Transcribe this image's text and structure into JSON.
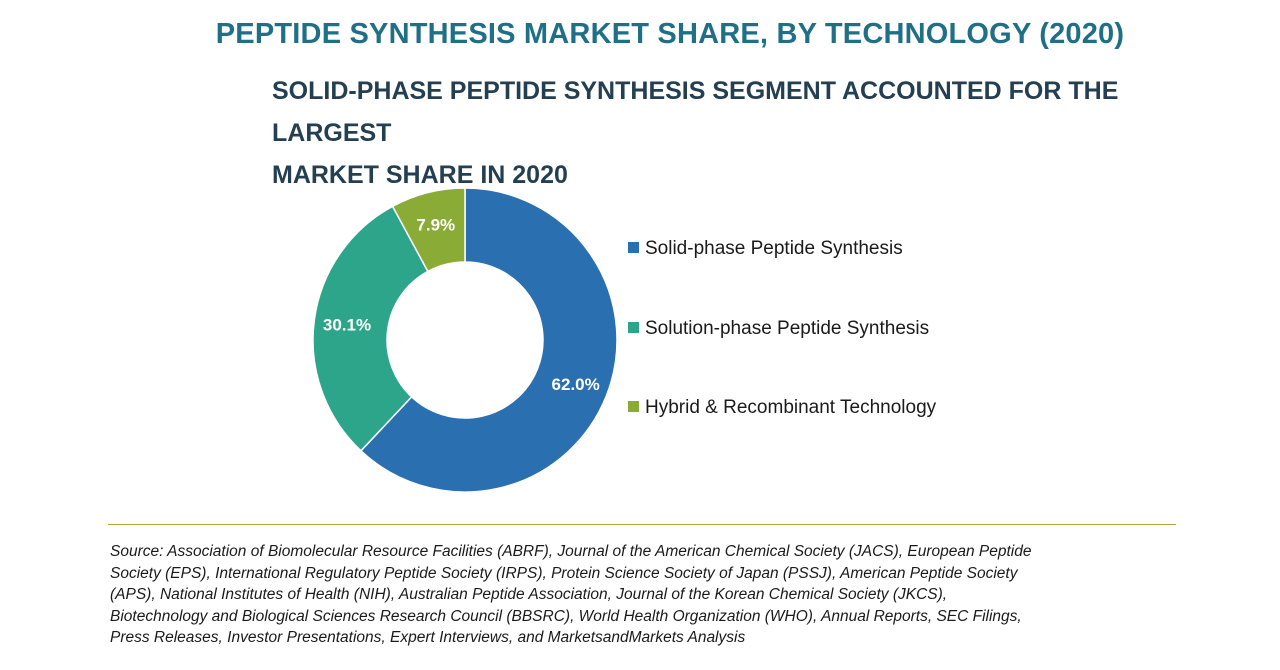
{
  "header": {
    "title": "PEPTIDE SYNTHESIS MARKET SHARE, BY TECHNOLOGY (2020)",
    "subtitle_line1": "SOLID-PHASE PEPTIDE SYNTHESIS SEGMENT ACCOUNTED FOR THE LARGEST",
    "subtitle_line2": "MARKET SHARE IN 2020"
  },
  "chart_data": {
    "type": "pie",
    "donut": true,
    "legend_position": "right",
    "slices": [
      {
        "name": "Solid-phase Peptide Synthesis",
        "value": 62.0,
        "label": "62.0%",
        "color": "#2a6faf"
      },
      {
        "name": "Solution-phase Peptide Synthesis",
        "value": 30.1,
        "label": "30.1%",
        "color": "#2ca58a"
      },
      {
        "name": "Hybrid & Recombinant Technology",
        "value": 7.9,
        "label": "7.9%",
        "color": "#8aab36"
      }
    ]
  },
  "legend": {
    "items": [
      {
        "label": "Solid-phase Peptide Synthesis",
        "color": "#2a6faf"
      },
      {
        "label": "Solution-phase Peptide Synthesis",
        "color": "#2ca58a"
      },
      {
        "label": "Hybrid & Recombinant Technology",
        "color": "#8aab36"
      }
    ]
  },
  "footer": {
    "source_lines": [
      " Source: Association of Biomolecular Resource Facilities (ABRF), Journal of the American Chemical Society (JACS), European Peptide",
      "Society (EPS), International Regulatory Peptide Society (IRPS), Protein Science Society of Japan (PSSJ), American Peptide Society",
      "(APS), National Institutes of Health (NIH), Australian Peptide Association, Journal of the Korean Chemical Society (JKCS),",
      "Biotechnology and Biological Sciences Research Council (BBSRC), World Health Organization (WHO), Annual Reports, SEC Filings,",
      "Press Releases, Investor Presentations, Expert Interviews, and MarketsandMarkets Analysis"
    ]
  }
}
